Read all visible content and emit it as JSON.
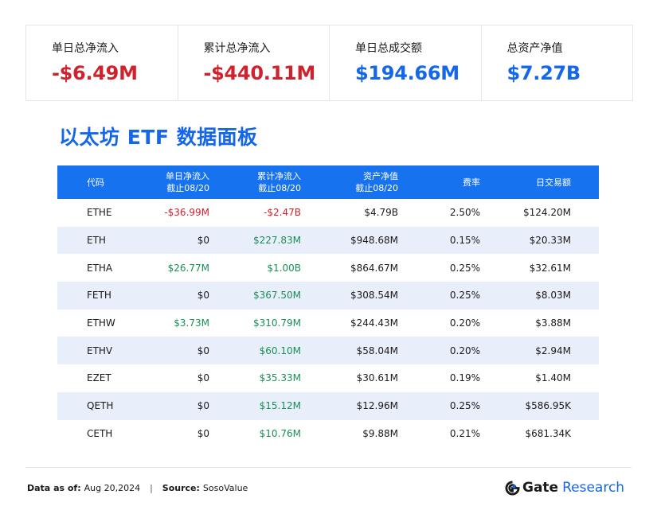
{
  "summary": [
    {
      "label": "单日总净流入",
      "value": "-$6.49M",
      "tone": "neg"
    },
    {
      "label": "累计总净流入",
      "value": "-$440.11M",
      "tone": "neg"
    },
    {
      "label": "单日总成交额",
      "value": "$194.66M",
      "tone": "blue"
    },
    {
      "label": "总资产净值",
      "value": "$7.27B",
      "tone": "blue"
    }
  ],
  "title": "以太坊 ETF 数据面板",
  "chart_data": {
    "type": "table",
    "columns": [
      "代码",
      "单日净流入\n截止08/20",
      "累计净流入\n截止08/20",
      "资产净值\n截止08/20",
      "费率",
      "日交易额"
    ],
    "rows": [
      [
        "ETHE",
        "-$36.99M",
        "-$2.47B",
        "$4.79B",
        "2.50%",
        "$124.20M"
      ],
      [
        "ETH",
        "$0",
        "$227.83M",
        "$948.68M",
        "0.15%",
        "$20.33M"
      ],
      [
        "ETHA",
        "$26.77M",
        "$1.00B",
        "$864.67M",
        "0.25%",
        "$32.61M"
      ],
      [
        "FETH",
        "$0",
        "$367.50M",
        "$308.54M",
        "0.25%",
        "$8.03M"
      ],
      [
        "ETHW",
        "$3.73M",
        "$310.79M",
        "$244.43M",
        "0.20%",
        "$3.88M"
      ],
      [
        "ETHV",
        "$0",
        "$60.10M",
        "$58.04M",
        "0.20%",
        "$2.94M"
      ],
      [
        "EZET",
        "$0",
        "$35.33M",
        "$30.61M",
        "0.19%",
        "$1.40M"
      ],
      [
        "QETH",
        "$0",
        "$15.12M",
        "$12.96M",
        "0.25%",
        "$586.95K"
      ],
      [
        "CETH",
        "$0",
        "$10.76M",
        "$9.88M",
        "0.21%",
        "$681.34K"
      ]
    ]
  },
  "footer": {
    "date_label": "Data as of:",
    "date_value": "Aug 20,2024",
    "separator": "|",
    "source_label": "Source:",
    "source_value": "SosoValue"
  },
  "brand": {
    "name": "Gate",
    "sub": "Research"
  },
  "colors": {
    "negative": "#d0222d",
    "positive": "#1a8f55",
    "accent": "#1467e8",
    "header_bg": "#1672ee",
    "row_alt": "#e9eefb"
  },
  "icons": {
    "brand_logo": "gate-logo-icon"
  }
}
